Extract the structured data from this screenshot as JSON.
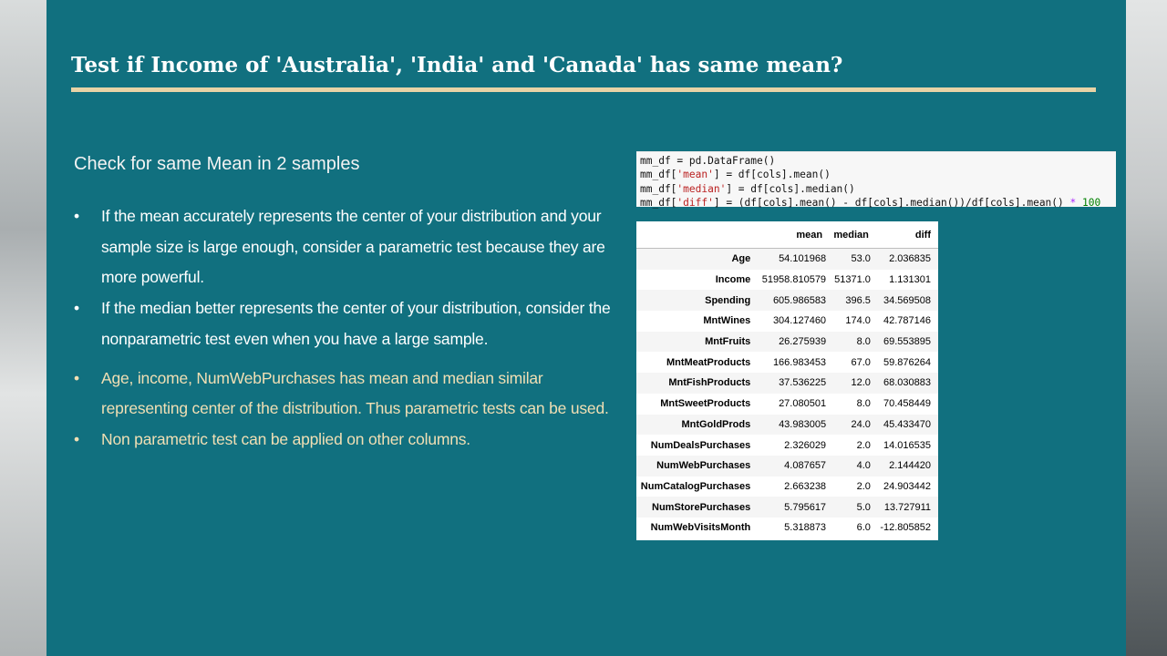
{
  "slide": {
    "title": "Test if Income of 'Australia', 'India' and 'Canada' has same mean?",
    "subtitle": "Check for same Mean in 2 samples",
    "bullet_marker": "•",
    "bullets": [
      "If the mean accurately represents the center of your distribution and your sample size is large enough, consider a parametric test because they are more powerful.",
      "If the median better represents the center of your distribution, consider the nonparametric test even when you have a large sample.",
      "Age, income, NumWebPurchases has mean and median similar representing  center of the distribution. Thus parametric tests can be used.",
      "Non parametric test can be applied on other columns."
    ]
  },
  "code": {
    "lines": [
      [
        "mm_df = pd.DataFrame()"
      ],
      [
        "mm_df[",
        "'mean'",
        "] = df[cols].mean()"
      ],
      [
        "mm_df[",
        "'median'",
        "] = df[cols].median()"
      ],
      [
        "mm_df[",
        "'diff'",
        "] = (df[cols].mean() - df[cols].median())/df[cols].mean() ",
        "*",
        " ",
        "100"
      ]
    ]
  },
  "colors": {
    "panel": "#11707f",
    "accent_rule": "#e8d3a6",
    "tan_text": "#f1dfb4"
  },
  "table": {
    "headers": [
      "",
      "mean",
      "median",
      "diff"
    ],
    "rows": [
      [
        "Age",
        "54.101968",
        "53.0",
        "2.036835"
      ],
      [
        "Income",
        "51958.810579",
        "51371.0",
        "1.131301"
      ],
      [
        "Spending",
        "605.986583",
        "396.5",
        "34.569508"
      ],
      [
        "MntWines",
        "304.127460",
        "174.0",
        "42.787146"
      ],
      [
        "MntFruits",
        "26.275939",
        "8.0",
        "69.553895"
      ],
      [
        "MntMeatProducts",
        "166.983453",
        "67.0",
        "59.876264"
      ],
      [
        "MntFishProducts",
        "37.536225",
        "12.0",
        "68.030883"
      ],
      [
        "MntSweetProducts",
        "27.080501",
        "8.0",
        "70.458449"
      ],
      [
        "MntGoldProds",
        "43.983005",
        "24.0",
        "45.433470"
      ],
      [
        "NumDealsPurchases",
        "2.326029",
        "2.0",
        "14.016535"
      ],
      [
        "NumWebPurchases",
        "4.087657",
        "4.0",
        "2.144420"
      ],
      [
        "NumCatalogPurchases",
        "2.663238",
        "2.0",
        "24.903442"
      ],
      [
        "NumStorePurchases",
        "5.795617",
        "5.0",
        "13.727911"
      ],
      [
        "NumWebVisitsMonth",
        "5.318873",
        "6.0",
        "-12.805852"
      ]
    ]
  }
}
